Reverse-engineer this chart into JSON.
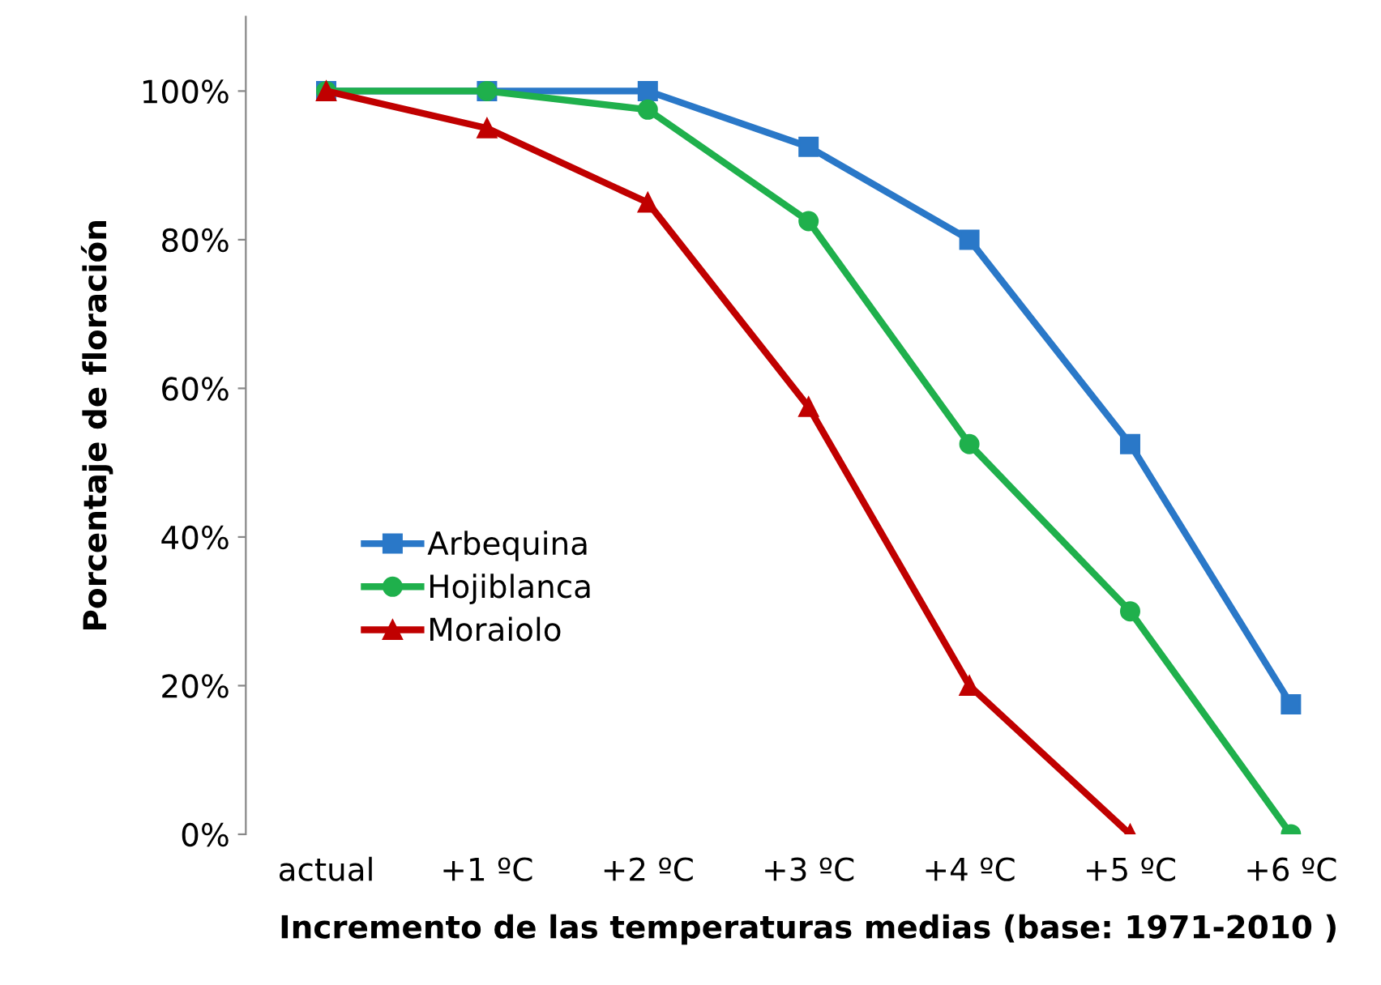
{
  "chart_data": {
    "type": "line",
    "xlabel": "Incremento de las temperaturas medias (base: 1971-2010 )",
    "ylabel": "Porcentaje de floración",
    "categories": [
      "actual",
      "+1 ºC",
      "+2 ºC",
      "+3 ºC",
      "+4 ºC",
      "+5 ºC",
      "+6 ºC"
    ],
    "series": [
      {
        "name": "Arbequina",
        "color": "#2a78c8",
        "marker": "square",
        "values": [
          100,
          100,
          100,
          92.5,
          80,
          52.5,
          17.5
        ]
      },
      {
        "name": "Hojiblanca",
        "color": "#1fb04c",
        "marker": "circle",
        "values": [
          100,
          100,
          97.5,
          82.5,
          52.5,
          30,
          0
        ]
      },
      {
        "name": "Moraiolo",
        "color": "#c00000",
        "marker": "triangle",
        "values": [
          100,
          95,
          85,
          57.5,
          20,
          0,
          null
        ]
      }
    ],
    "ylim": [
      0,
      110
    ],
    "yticks": [
      {
        "value": 0,
        "label": "0%"
      },
      {
        "value": 20,
        "label": "20%"
      },
      {
        "value": 40,
        "label": "40%"
      },
      {
        "value": 60,
        "label": "60%"
      },
      {
        "value": 80,
        "label": "80%"
      },
      {
        "value": 100,
        "label": "100%"
      }
    ],
    "grid": false,
    "legend": "left",
    "line_style": "solid"
  }
}
